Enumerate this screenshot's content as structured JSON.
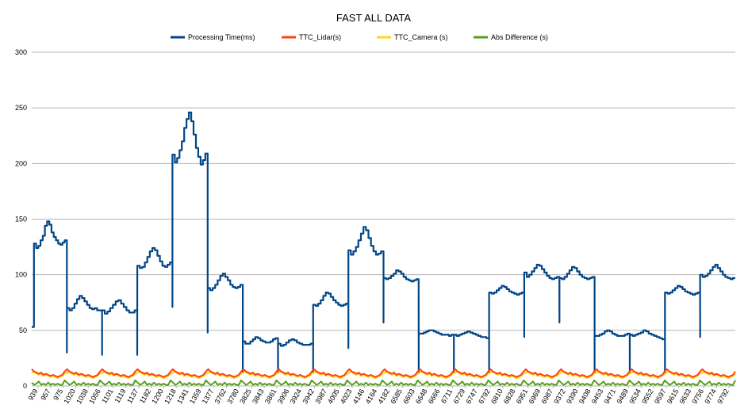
{
  "chart_data": {
    "type": "line",
    "title": "FAST ALL DATA",
    "xlabel": "",
    "ylabel": "",
    "ylim": [
      0,
      300
    ],
    "yticks": [
      0,
      50,
      100,
      150,
      200,
      250,
      300
    ],
    "grid": true,
    "legend_position": "top",
    "x_tick_labels": [
      "939",
      "957",
      "975",
      "1020",
      "1038",
      "1056",
      "1101",
      "1119",
      "1137",
      "1182",
      "1200",
      "1218",
      "1341",
      "1359",
      "1377",
      "3762",
      "3780",
      "3825",
      "3843",
      "3861",
      "3906",
      "3924",
      "3942",
      "3987",
      "4005",
      "4023",
      "4146",
      "4164",
      "4182",
      "6585",
      "6603",
      "6648",
      "6666",
      "6711",
      "6729",
      "6747",
      "6792",
      "6810",
      "6828",
      "6951",
      "6969",
      "6987",
      "9372",
      "9390",
      "9408",
      "9453",
      "9471",
      "9489",
      "9534",
      "9552",
      "9597",
      "9615",
      "9633",
      "9756",
      "9774",
      "9792"
    ],
    "series": [
      {
        "name": "Processing Time(ms)",
        "color": "#004586",
        "segments": [
          {
            "values": [
              53,
              128,
              124,
              126,
              131,
              135,
              144,
              148,
              145,
              138,
              134,
              131,
              128,
              127,
              129,
              131
            ]
          },
          {
            "values": [
              70,
              68,
              70,
              74,
              78,
              81,
              79,
              76,
              73,
              70,
              69,
              70,
              68,
              68
            ]
          },
          {
            "values": [
              68,
              65,
              67,
              70,
              73,
              76,
              77,
              74,
              71,
              68,
              66,
              66,
              68
            ]
          },
          {
            "values": [
              108,
              106,
              107,
              111,
              116,
              121,
              124,
              122,
              117,
              112,
              108,
              107,
              109,
              111
            ]
          },
          {
            "values": [
              208,
              201,
              205,
              212,
              220,
              232,
              240,
              246,
              238,
              226,
              214,
              206,
              199,
              203,
              209
            ]
          },
          {
            "values": [
              88,
              86,
              88,
              91,
              95,
              99,
              101,
              98,
              95,
              91,
              89,
              88,
              89,
              91
            ]
          },
          {
            "values": [
              40,
              38,
              38,
              40,
              42,
              44,
              43,
              41,
              40,
              39,
              39,
              40,
              42,
              43
            ]
          },
          {
            "values": [
              38,
              36,
              37,
              39,
              41,
              42,
              41,
              39,
              38,
              37,
              37,
              37,
              38
            ]
          },
          {
            "values": [
              73,
              72,
              74,
              77,
              81,
              84,
              83,
              80,
              77,
              75,
              73,
              72,
              73,
              74
            ]
          },
          {
            "values": [
              122,
              118,
              121,
              125,
              131,
              137,
              143,
              140,
              133,
              126,
              121,
              118,
              119,
              121
            ]
          },
          {
            "values": [
              97,
              96,
              97,
              99,
              101,
              104,
              103,
              101,
              98,
              96,
              95,
              94,
              95,
              96
            ]
          },
          {
            "values": [
              47,
              47,
              48,
              49,
              50,
              50,
              49,
              48,
              47,
              46,
              46,
              46,
              45,
              46
            ]
          },
          {
            "values": [
              46,
              45,
              46,
              47,
              48,
              49,
              48,
              47,
              46,
              45,
              44,
              44,
              43
            ]
          },
          {
            "values": [
              84,
              83,
              84,
              86,
              88,
              90,
              89,
              87,
              85,
              84,
              83,
              82,
              83,
              84
            ]
          },
          {
            "values": [
              102,
              98,
              100,
              103,
              106,
              109,
              108,
              105,
              102,
              99,
              97,
              96,
              97,
              98
            ]
          },
          {
            "values": [
              97,
              96,
              98,
              101,
              104,
              107,
              106,
              103,
              100,
              98,
              97,
              96,
              97,
              98
            ]
          },
          {
            "values": [
              45,
              45,
              46,
              47,
              49,
              50,
              49,
              47,
              46,
              45,
              45,
              45,
              46,
              47
            ]
          },
          {
            "values": [
              46,
              45,
              46,
              47,
              48,
              50,
              49,
              47,
              46,
              45,
              44,
              43,
              42
            ]
          },
          {
            "values": [
              84,
              83,
              84,
              86,
              88,
              90,
              89,
              87,
              85,
              84,
              83,
              82,
              83,
              84
            ]
          },
          {
            "values": [
              100,
              98,
              99,
              101,
              104,
              107,
              109,
              106,
              103,
              100,
              98,
              97,
              96,
              97
            ]
          }
        ]
      },
      {
        "name": "TTC_Lidar(s)",
        "color": "#ff420e",
        "pattern": [
          15,
          13,
          12,
          11,
          12,
          10,
          11,
          10,
          9,
          10,
          9,
          8,
          9,
          10,
          13
        ],
        "repeat_count": 20
      },
      {
        "name": "TTC_Camera (s)",
        "color": "#ffd320",
        "pattern": [
          12,
          13,
          11,
          10,
          11,
          9,
          10,
          9,
          8,
          9,
          8,
          7,
          8,
          9,
          11
        ],
        "repeat_count": 20
      },
      {
        "name": "Abs Difference (s)",
        "color": "#579d1c",
        "pattern": [
          3,
          1,
          2,
          4,
          1,
          2,
          1,
          3,
          1,
          2,
          1,
          2,
          1,
          1,
          5
        ],
        "repeat_count": 20
      }
    ]
  }
}
